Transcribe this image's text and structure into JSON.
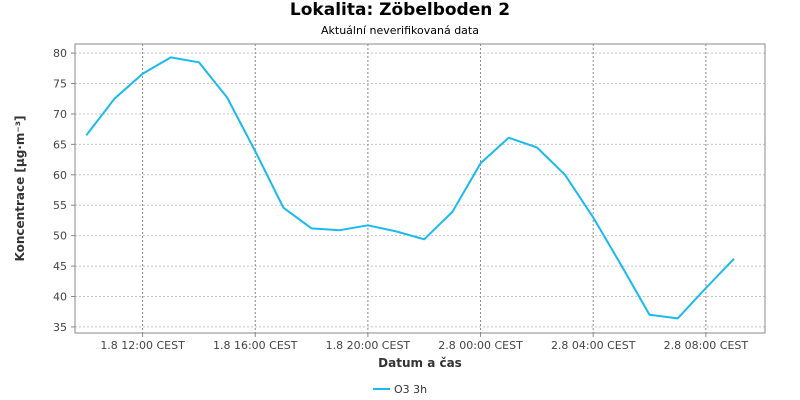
{
  "chart_data": {
    "type": "line",
    "title": "Lokalita: Zöbelboden 2",
    "subtitle": "Aktuální neverifikovaná data",
    "xlabel": "Datum a čas",
    "ylabel": "Koncentrace [µg·m⁻³]",
    "x_ticks": [
      "1.8 12:00 CEST",
      "1.8 16:00 CEST",
      "1.8 20:00 CEST",
      "2.8 00:00 CEST",
      "2.8 04:00 CEST",
      "2.8 08:00 CEST"
    ],
    "x_tick_hours": [
      12,
      16,
      20,
      24,
      28,
      32
    ],
    "xlim_hours": [
      9.6,
      34.1
    ],
    "ylim": [
      34,
      81.5
    ],
    "y_ticks": [
      35,
      40,
      45,
      50,
      55,
      60,
      65,
      70,
      75,
      80
    ],
    "grid": true,
    "legend_position": "bottom-center",
    "series": [
      {
        "name": "O3 3h",
        "color": "#1ab9f0",
        "x_hours": [
          10,
          11,
          12,
          13,
          14,
          15,
          16,
          17,
          18,
          19,
          20,
          21,
          22,
          23,
          24,
          25,
          26,
          27,
          28,
          29,
          30,
          31,
          32,
          33
        ],
        "values": [
          66.5,
          72.5,
          76.6,
          79.3,
          78.5,
          72.7,
          63.9,
          54.6,
          51.2,
          50.9,
          51.7,
          50.7,
          49.4,
          53.9,
          61.9,
          66.1,
          64.5,
          60.0,
          53.0,
          45.1,
          37.0,
          36.4,
          41.4,
          46.2
        ]
      }
    ]
  }
}
